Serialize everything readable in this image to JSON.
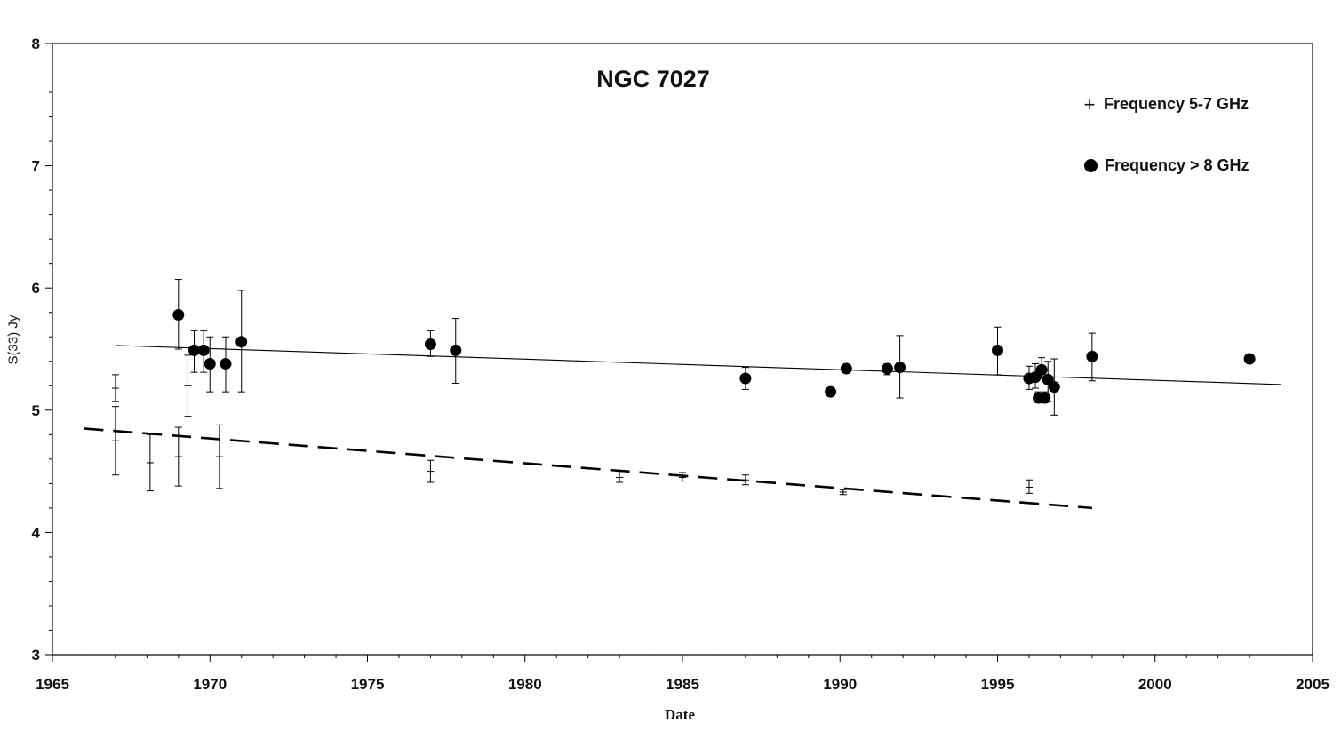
{
  "chart_data": {
    "type": "scatter",
    "title": "NGC 7027",
    "xlabel": "Date",
    "ylabel": "S(33) Jy",
    "xlim": [
      1965,
      2005
    ],
    "ylim": [
      3,
      8
    ],
    "x_ticks": [
      1965,
      1970,
      1975,
      1980,
      1985,
      1990,
      1995,
      2000,
      2005
    ],
    "y_ticks": [
      3,
      4,
      5,
      6,
      7,
      8
    ],
    "grid": false,
    "legend_position": "top-right",
    "series": [
      {
        "name": "Frequency 5-7 GHz",
        "marker": "plus",
        "points": [
          {
            "x": 1967.0,
            "y": 5.18,
            "lo": 5.07,
            "hi": 5.29
          },
          {
            "x": 1967.0,
            "y": 4.75,
            "lo": 4.47,
            "hi": 5.03
          },
          {
            "x": 1968.1,
            "y": 4.57,
            "lo": 4.34,
            "hi": 4.8
          },
          {
            "x": 1969.0,
            "y": 4.62,
            "lo": 4.38,
            "hi": 4.86
          },
          {
            "x": 1969.3,
            "y": 5.2,
            "lo": 4.95,
            "hi": 5.45
          },
          {
            "x": 1970.3,
            "y": 4.62,
            "lo": 4.36,
            "hi": 4.88
          },
          {
            "x": 1977.0,
            "y": 4.5,
            "lo": 4.41,
            "hi": 4.59
          },
          {
            "x": 1983.0,
            "y": 4.45,
            "lo": 4.41,
            "hi": 4.5
          },
          {
            "x": 1985.0,
            "y": 4.45,
            "lo": 4.42,
            "hi": 4.49
          },
          {
            "x": 1987.0,
            "y": 4.43,
            "lo": 4.39,
            "hi": 4.47
          },
          {
            "x": 1990.1,
            "y": 4.33,
            "lo": 4.31,
            "hi": 4.35
          },
          {
            "x": 1996.0,
            "y": 4.37,
            "lo": 4.32,
            "hi": 4.43
          }
        ],
        "trend": {
          "x": [
            1966.0,
            1998.0
          ],
          "y": [
            4.85,
            4.2
          ],
          "style": "dashed"
        }
      },
      {
        "name": "Frequency > 8 GHz",
        "marker": "dot",
        "points": [
          {
            "x": 1969.0,
            "y": 5.78,
            "lo": 5.5,
            "hi": 6.07
          },
          {
            "x": 1969.5,
            "y": 5.49,
            "lo": 5.31,
            "hi": 5.65
          },
          {
            "x": 1969.8,
            "y": 5.49,
            "lo": 5.31,
            "hi": 5.65
          },
          {
            "x": 1970.0,
            "y": 5.38,
            "lo": 5.15,
            "hi": 5.6
          },
          {
            "x": 1970.5,
            "y": 5.38,
            "lo": 5.15,
            "hi": 5.6
          },
          {
            "x": 1971.0,
            "y": 5.56,
            "lo": 5.15,
            "hi": 5.98
          },
          {
            "x": 1977.0,
            "y": 5.54,
            "lo": 5.44,
            "hi": 5.65
          },
          {
            "x": 1977.8,
            "y": 5.49,
            "lo": 5.22,
            "hi": 5.75
          },
          {
            "x": 1987.0,
            "y": 5.26,
            "lo": 5.17,
            "hi": 5.35
          },
          {
            "x": 1989.7,
            "y": 5.15,
            "lo": 5.13,
            "hi": 5.18
          },
          {
            "x": 1990.2,
            "y": 5.34,
            "lo": 5.31,
            "hi": 5.37
          },
          {
            "x": 1991.5,
            "y": 5.34,
            "lo": 5.29,
            "hi": 5.38
          },
          {
            "x": 1991.9,
            "y": 5.35,
            "lo": 5.1,
            "hi": 5.61
          },
          {
            "x": 1995.0,
            "y": 5.49,
            "lo": 5.29,
            "hi": 5.68
          },
          {
            "x": 1996.0,
            "y": 5.26,
            "lo": 5.17,
            "hi": 5.36
          },
          {
            "x": 1996.2,
            "y": 5.27,
            "lo": 5.18,
            "hi": 5.38
          },
          {
            "x": 1996.3,
            "y": 5.1,
            "lo": 5.06,
            "hi": 5.15
          },
          {
            "x": 1996.4,
            "y": 5.33,
            "lo": 5.26,
            "hi": 5.43
          },
          {
            "x": 1996.5,
            "y": 5.1,
            "lo": 5.06,
            "hi": 5.15
          },
          {
            "x": 1996.6,
            "y": 5.25,
            "lo": 5.07,
            "hi": 5.4
          },
          {
            "x": 1996.8,
            "y": 5.19,
            "lo": 4.96,
            "hi": 5.42
          },
          {
            "x": 1998.0,
            "y": 5.44,
            "lo": 5.24,
            "hi": 5.63
          },
          {
            "x": 2003.0,
            "y": 5.42,
            "lo": 5.42,
            "hi": 5.42
          }
        ],
        "trend": {
          "x": [
            1967.0,
            2004.0
          ],
          "y": [
            5.53,
            5.21
          ],
          "style": "solid"
        }
      }
    ]
  }
}
